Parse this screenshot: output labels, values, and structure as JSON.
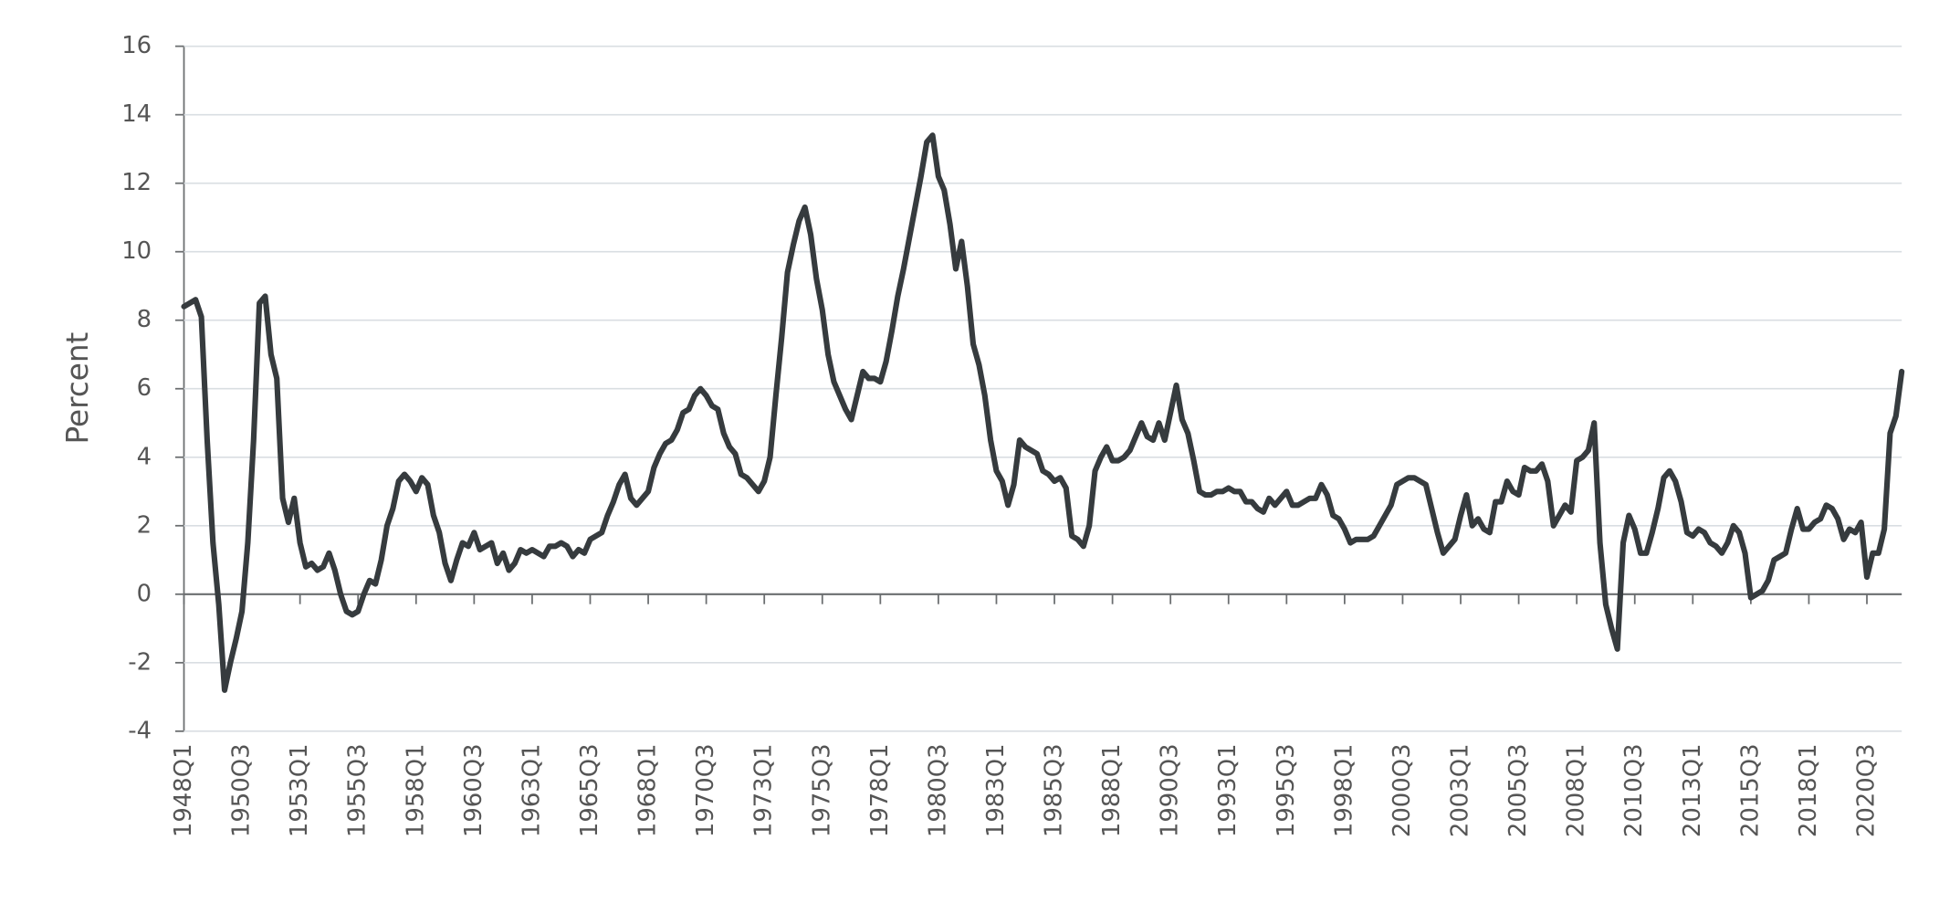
{
  "chart_data": {
    "type": "line",
    "y_label": "Percent",
    "color": "#363b3e",
    "grid": true,
    "ylim": [
      -4,
      16
    ],
    "yticks": [
      -4,
      -2,
      0,
      2,
      4,
      6,
      8,
      10,
      12,
      14,
      16
    ],
    "categories": [
      "1948Q1",
      null,
      null,
      null,
      null,
      null,
      null,
      null,
      null,
      null,
      "1950Q3",
      null,
      null,
      null,
      null,
      null,
      null,
      null,
      null,
      null,
      "1953Q1",
      null,
      null,
      null,
      null,
      null,
      null,
      null,
      null,
      null,
      "1955Q3",
      null,
      null,
      null,
      null,
      null,
      null,
      null,
      null,
      null,
      "1958Q1",
      null,
      null,
      null,
      null,
      null,
      null,
      null,
      null,
      null,
      "1960Q3",
      null,
      null,
      null,
      null,
      null,
      null,
      null,
      null,
      null,
      "1963Q1",
      null,
      null,
      null,
      null,
      null,
      null,
      null,
      null,
      null,
      "1965Q3",
      null,
      null,
      null,
      null,
      null,
      null,
      null,
      null,
      null,
      "1968Q1",
      null,
      null,
      null,
      null,
      null,
      null,
      null,
      null,
      null,
      "1970Q3",
      null,
      null,
      null,
      null,
      null,
      null,
      null,
      null,
      null,
      "1973Q1",
      null,
      null,
      null,
      null,
      null,
      null,
      null,
      null,
      null,
      "1975Q3",
      null,
      null,
      null,
      null,
      null,
      null,
      null,
      null,
      null,
      "1978Q1",
      null,
      null,
      null,
      null,
      null,
      null,
      null,
      null,
      null,
      "1980Q3",
      null,
      null,
      null,
      null,
      null,
      null,
      null,
      null,
      null,
      "1983Q1",
      null,
      null,
      null,
      null,
      null,
      null,
      null,
      null,
      null,
      "1985Q3",
      null,
      null,
      null,
      null,
      null,
      null,
      null,
      null,
      null,
      "1988Q1",
      null,
      null,
      null,
      null,
      null,
      null,
      null,
      null,
      null,
      "1990Q3",
      null,
      null,
      null,
      null,
      null,
      null,
      null,
      null,
      null,
      "1993Q1",
      null,
      null,
      null,
      null,
      null,
      null,
      null,
      null,
      null,
      "1995Q3",
      null,
      null,
      null,
      null,
      null,
      null,
      null,
      null,
      null,
      "1998Q1",
      null,
      null,
      null,
      null,
      null,
      null,
      null,
      null,
      null,
      "2000Q3",
      null,
      null,
      null,
      null,
      null,
      null,
      null,
      null,
      null,
      "2003Q1",
      null,
      null,
      null,
      null,
      null,
      null,
      null,
      null,
      null,
      "2005Q3",
      null,
      null,
      null,
      null,
      null,
      null,
      null,
      null,
      null,
      "2008Q1",
      null,
      null,
      null,
      null,
      null,
      null,
      null,
      null,
      null,
      "2010Q3",
      null,
      null,
      null,
      null,
      null,
      null,
      null,
      null,
      null,
      "2013Q1",
      null,
      null,
      null,
      null,
      null,
      null,
      null,
      null,
      null,
      "2015Q3",
      null,
      null,
      null,
      null,
      null,
      null,
      null,
      null,
      null,
      "2018Q1",
      null,
      null,
      null,
      null,
      null,
      null,
      null,
      null,
      null,
      "2020Q3",
      null,
      null,
      null,
      null,
      null,
      null
    ],
    "values": [
      8.4,
      8.5,
      8.6,
      8.1,
      4.5,
      1.5,
      -0.3,
      -2.8,
      -2.0,
      -1.3,
      -0.5,
      1.5,
      4.5,
      8.5,
      8.7,
      7.0,
      6.3,
      2.8,
      2.1,
      2.8,
      1.5,
      0.8,
      0.9,
      0.7,
      0.8,
      1.2,
      0.7,
      0.0,
      -0.5,
      -0.6,
      -0.5,
      0.0,
      0.4,
      0.3,
      1.0,
      2.0,
      2.5,
      3.3,
      3.5,
      3.3,
      3.0,
      3.4,
      3.2,
      2.3,
      1.8,
      0.9,
      0.4,
      1.0,
      1.5,
      1.4,
      1.8,
      1.3,
      1.4,
      1.5,
      0.9,
      1.2,
      0.7,
      0.9,
      1.3,
      1.2,
      1.3,
      1.2,
      1.1,
      1.4,
      1.4,
      1.5,
      1.4,
      1.1,
      1.3,
      1.2,
      1.6,
      1.7,
      1.8,
      2.3,
      2.7,
      3.2,
      3.5,
      2.8,
      2.6,
      2.8,
      3.0,
      3.7,
      4.1,
      4.4,
      4.5,
      4.8,
      5.3,
      5.4,
      5.8,
      6.0,
      5.8,
      5.5,
      5.4,
      4.7,
      4.3,
      4.1,
      3.5,
      3.4,
      3.2,
      3.0,
      3.3,
      4.0,
      5.8,
      7.5,
      9.4,
      10.2,
      10.9,
      11.3,
      10.5,
      9.2,
      8.3,
      7.0,
      6.2,
      5.8,
      5.4,
      5.1,
      5.8,
      6.5,
      6.3,
      6.3,
      6.2,
      6.8,
      7.7,
      8.7,
      9.5,
      10.4,
      11.3,
      12.2,
      13.2,
      13.4,
      12.2,
      11.8,
      10.8,
      9.5,
      10.3,
      9.0,
      7.3,
      6.7,
      5.8,
      4.5,
      3.6,
      3.3,
      2.6,
      3.2,
      4.5,
      4.3,
      4.2,
      4.1,
      3.6,
      3.5,
      3.3,
      3.4,
      3.1,
      1.7,
      1.6,
      1.4,
      2.0,
      3.6,
      4.0,
      4.3,
      3.9,
      3.9,
      4.0,
      4.2,
      4.6,
      5.0,
      4.6,
      4.5,
      5.0,
      4.5,
      5.3,
      6.1,
      5.1,
      4.7,
      3.9,
      3.0,
      2.9,
      2.9,
      3.0,
      3.0,
      3.1,
      3.0,
      3.0,
      2.7,
      2.7,
      2.5,
      2.4,
      2.8,
      2.6,
      2.8,
      3.0,
      2.6,
      2.6,
      2.7,
      2.8,
      2.8,
      3.2,
      2.9,
      2.3,
      2.2,
      1.9,
      1.5,
      1.6,
      1.6,
      1.6,
      1.7,
      2.0,
      2.3,
      2.6,
      3.2,
      3.3,
      3.4,
      3.4,
      3.3,
      3.2,
      2.5,
      1.8,
      1.2,
      1.4,
      1.6,
      2.3,
      2.9,
      2.0,
      2.2,
      1.9,
      1.8,
      2.7,
      2.7,
      3.3,
      3.0,
      2.9,
      3.7,
      3.6,
      3.6,
      3.8,
      3.3,
      2.0,
      2.3,
      2.6,
      2.4,
      3.9,
      4.0,
      4.2,
      5.0,
      1.5,
      -0.3,
      -1.0,
      -1.6,
      1.5,
      2.3,
      1.9,
      1.2,
      1.2,
      1.8,
      2.5,
      3.4,
      3.6,
      3.3,
      2.7,
      1.8,
      1.7,
      1.9,
      1.8,
      1.5,
      1.4,
      1.2,
      1.5,
      2.0,
      1.8,
      1.2,
      -0.1,
      0.0,
      0.1,
      0.4,
      1.0,
      1.1,
      1.2,
      1.9,
      2.5,
      1.9,
      1.9,
      2.1,
      2.2,
      2.6,
      2.5,
      2.2,
      1.6,
      1.9,
      1.8,
      2.1,
      0.5,
      1.2,
      1.2,
      1.9,
      4.7,
      5.2,
      6.5
    ]
  }
}
